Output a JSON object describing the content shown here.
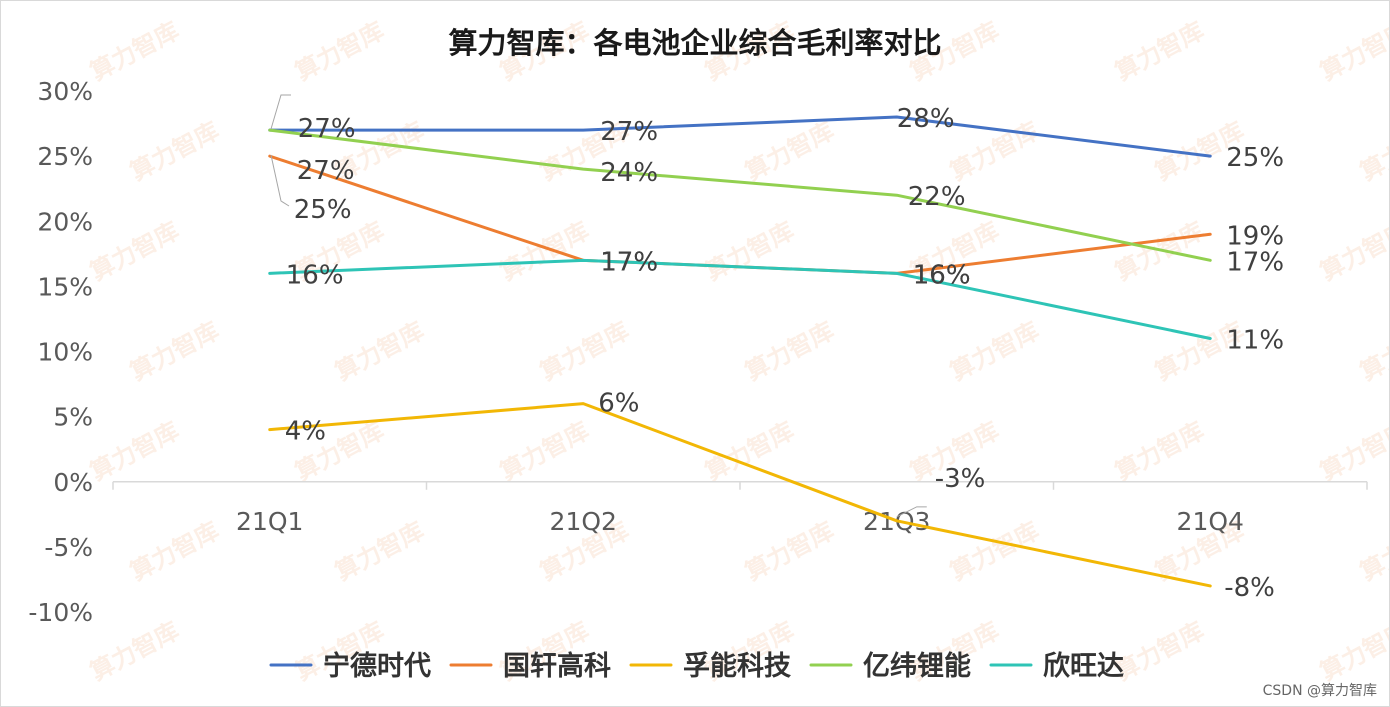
{
  "chart_data": {
    "type": "line",
    "title": "算力智库：各电池企业综合毛利率对比",
    "categories": [
      "21Q1",
      "21Q2",
      "21Q3",
      "21Q4"
    ],
    "ylim": [
      -10,
      30
    ],
    "yticks": [
      30,
      25,
      20,
      15,
      10,
      5,
      0,
      -5,
      -10
    ],
    "ytick_labels": [
      "30%",
      "25%",
      "20%",
      "15%",
      "10%",
      "5%",
      "0%",
      "-5%",
      "-10%"
    ],
    "grid": false,
    "legend": "bottom",
    "series": [
      {
        "name": "宁德时代",
        "color": "#4472C4",
        "values": [
          27,
          27,
          28,
          25
        ],
        "labels": [
          "27%",
          "27%",
          "28%",
          "25%"
        ]
      },
      {
        "name": "国轩高科",
        "color": "#ED7D31",
        "values": [
          25,
          17,
          16,
          19
        ],
        "labels": [
          "25%",
          "17%",
          "16%",
          "19%"
        ]
      },
      {
        "name": "孚能科技",
        "color": "#F2B705",
        "values": [
          4,
          6,
          -3,
          -8
        ],
        "labels": [
          "4%",
          "6%",
          "-3%",
          "-8%"
        ]
      },
      {
        "name": "亿纬锂能",
        "color": "#92D050",
        "values": [
          27,
          24,
          22,
          17
        ],
        "labels": [
          "27%",
          "24%",
          "22%",
          "17%"
        ]
      },
      {
        "name": "欣旺达",
        "color": "#2EC4B6",
        "values": [
          16,
          17,
          16,
          11
        ],
        "labels": [
          "16%",
          "17%",
          "16%",
          "11%"
        ]
      }
    ]
  },
  "watermark": "算力智库",
  "credit": "CSDN @算力智库"
}
